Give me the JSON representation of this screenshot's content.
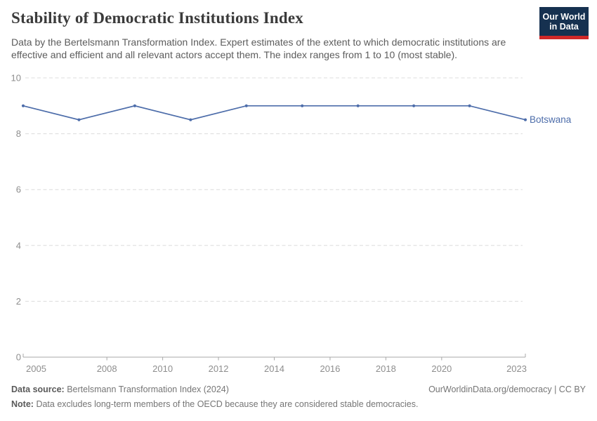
{
  "header": {
    "title": "Stability of Democratic Institutions Index",
    "subtitle": "Data by the Bertelsmann Transformation Index. Expert estimates of the extent to which democratic institutions are effective and efficient and all relevant actors accept them. The index ranges from 1 to 10 (most stable).",
    "logo": {
      "line1": "Our World",
      "line2": "in Data",
      "bg_color": "#163150",
      "bar_color": "#d02828"
    }
  },
  "chart_data": {
    "type": "line",
    "title": "Stability of Democratic Institutions Index",
    "entity": "Botswana",
    "x": [
      2005,
      2007,
      2009,
      2011,
      2013,
      2015,
      2017,
      2019,
      2021,
      2023
    ],
    "series": [
      {
        "name": "Botswana",
        "color": "#4d6daa",
        "values": [
          9,
          8.5,
          9,
          8.5,
          9,
          9,
          9,
          9,
          9,
          8.5
        ]
      }
    ],
    "x_ticks": [
      2005,
      2008,
      2010,
      2012,
      2014,
      2016,
      2018,
      2020,
      2023
    ],
    "y_ticks": [
      0,
      2,
      4,
      6,
      8,
      10
    ],
    "xlim": [
      2005,
      2023
    ],
    "ylim": [
      0,
      10
    ],
    "grid": "horizontal-dashed",
    "legend_position": "end-of-line-label"
  },
  "footer": {
    "source_label": "Data source:",
    "source_text": "Bertelsmann Transformation Index (2024)",
    "link": "OurWorldinData.org/democracy | CC BY",
    "note_label": "Note:",
    "note_text": "Data excludes long-term members of the OECD because they are considered stable democracies."
  }
}
